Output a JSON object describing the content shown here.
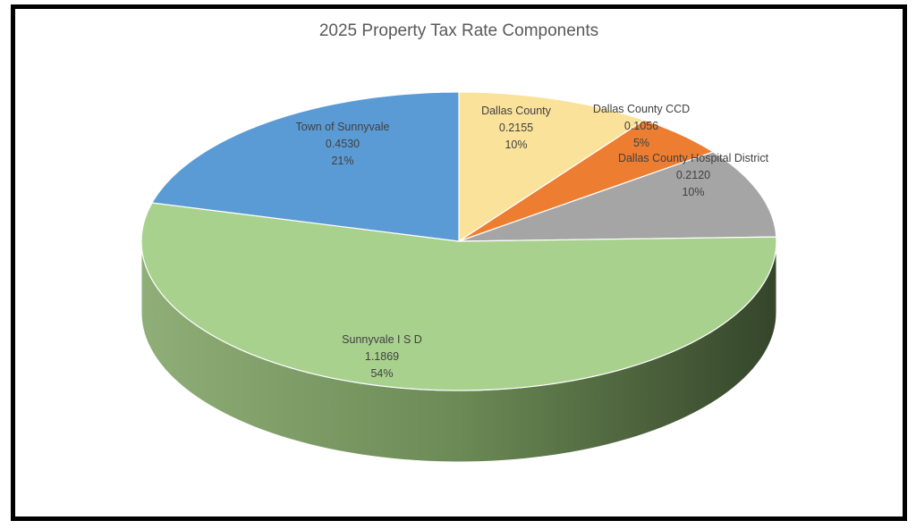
{
  "chart_data": {
    "type": "pie",
    "title": "2025 Property Tax Rate Components",
    "slices": [
      {
        "label": "Dallas County",
        "value": 0.2155,
        "value_text": "0.2155",
        "percent": "10%",
        "color": "#fbe29a"
      },
      {
        "label": "Dallas County CCD",
        "value": 0.1056,
        "value_text": "0.1056",
        "percent": "5%",
        "color": "#ed7d31"
      },
      {
        "label": "Dallas County Hospital District",
        "value": 0.212,
        "value_text": "0.2120",
        "percent": "10%",
        "color": "#a5a5a5"
      },
      {
        "label": "Sunnyvale I S D",
        "value": 1.1869,
        "value_text": "1.1869",
        "percent": "54%",
        "color": "#a9d18e"
      },
      {
        "label": "Town of Sunnyvale",
        "value": 0.453,
        "value_text": "0.4530",
        "percent": "21%",
        "color": "#5b9bd5"
      }
    ],
    "legend": "none",
    "style": "3d"
  }
}
